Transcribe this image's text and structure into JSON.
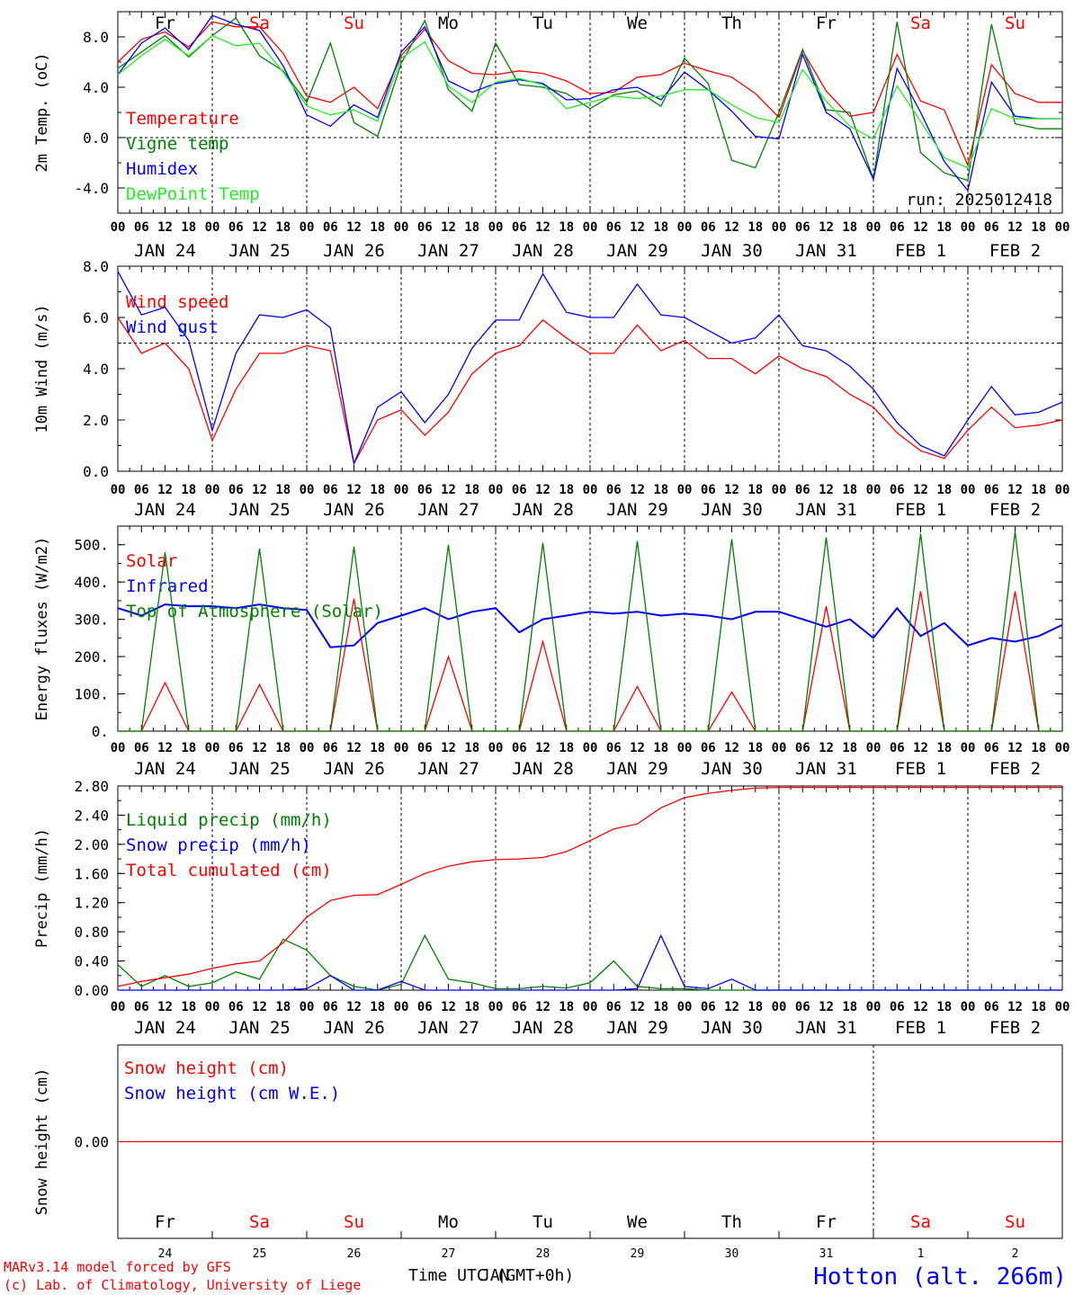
{
  "meteogram": {
    "run_label": "run: 2025012418",
    "footer_model": "MARv3.14 model forced by GFS",
    "footer_lab": "(c) Lab. of Climatology, University of Liege",
    "footer_time_label": "Time UTC (GMT+0h)",
    "footer_time_overlap": "JAN",
    "station": "Hotton (alt. 266m)",
    "hour_ticks": [
      "00",
      "06",
      "12",
      "18"
    ],
    "date_labels": [
      "JAN 24",
      "JAN 25",
      "JAN 26",
      "JAN 27",
      "JAN 28",
      "JAN 29",
      "JAN 30",
      "JAN 31",
      "FEB  1",
      "FEB  2"
    ],
    "day_labels": [
      "Fr",
      "Sa",
      "Su",
      "Mo",
      "Tu",
      "We",
      "Th",
      "Fr",
      "Sa",
      "Su"
    ],
    "day_colors": [
      "#000000",
      "#ff0000",
      "#ff0000",
      "#000000",
      "#000000",
      "#000000",
      "#000000",
      "#000000",
      "#ff0000",
      "#ff0000"
    ],
    "day_numbers": [
      "24",
      "25",
      "26",
      "27",
      "28",
      "29",
      "30",
      "31",
      "1",
      "2"
    ],
    "colors": {
      "red": "#ff0000",
      "green": "#008000",
      "blue": "#0000ff",
      "lightgreen": "#22ee22"
    }
  },
  "chart_data": [
    {
      "type": "line",
      "ylabel": "2m Temp. (oC)",
      "ylim": [
        -6,
        10
      ],
      "yticks": [
        -4,
        0,
        4,
        8
      ],
      "ytick_labels": [
        "-4.0",
        "0.0",
        "4.0",
        "8.0"
      ],
      "hline": 0,
      "x_start": "2025-01-24T00",
      "x_step_hours": 6,
      "series": [
        {
          "name": "Temperature",
          "color": "#ff0000",
          "values": [
            6.0,
            7.8,
            8.4,
            7.2,
            9.2,
            8.8,
            8.8,
            6.7,
            3.3,
            2.8,
            4.0,
            2.3,
            6.5,
            8.6,
            6.1,
            5.1,
            5.0,
            5.3,
            5.1,
            4.5,
            3.5,
            3.6,
            4.8,
            5.0,
            5.9,
            5.3,
            4.8,
            3.5,
            1.6,
            6.9,
            3.7,
            1.7,
            2.0,
            6.6,
            2.9,
            2.2,
            -2.2,
            5.8,
            3.5,
            2.8,
            2.8
          ]
        },
        {
          "name": "Vigne temp",
          "color": "#008000",
          "values": [
            5.5,
            6.8,
            8.1,
            6.4,
            8.1,
            9.5,
            6.5,
            5.3,
            2.8,
            7.5,
            1.2,
            0.1,
            5.9,
            9.3,
            3.8,
            2.1,
            7.5,
            4.2,
            4.0,
            3.5,
            2.3,
            3.4,
            3.7,
            2.5,
            6.3,
            4.3,
            -1.8,
            -2.4,
            2.0,
            7.0,
            2.2,
            2.0,
            -3.3,
            9.2,
            -1.2,
            -2.8,
            -3.4,
            9.0,
            1.1,
            0.7,
            0.7
          ]
        },
        {
          "name": "Humidex",
          "color": "#0000ff",
          "values": [
            5.0,
            7.5,
            8.7,
            7.0,
            9.7,
            9.0,
            8.5,
            5.7,
            1.8,
            0.9,
            2.6,
            1.6,
            6.8,
            8.8,
            4.5,
            3.6,
            4.3,
            4.6,
            4.3,
            3.0,
            3.1,
            3.8,
            4.0,
            3.0,
            5.2,
            3.8,
            2.1,
            0.1,
            -0.1,
            6.6,
            2.0,
            0.7,
            -3.3,
            5.5,
            2.0,
            -1.9,
            -4.2,
            4.4,
            1.7,
            1.5,
            1.5
          ]
        },
        {
          "name": "DewPoint Temp",
          "color": "#22ee22",
          "values": [
            5.0,
            6.5,
            7.8,
            6.5,
            8.1,
            7.3,
            7.5,
            5.2,
            2.5,
            1.8,
            2.2,
            1.3,
            6.3,
            7.6,
            4.1,
            2.8,
            4.4,
            4.7,
            4.2,
            2.3,
            2.8,
            3.3,
            3.1,
            3.3,
            3.8,
            3.8,
            2.6,
            1.6,
            1.2,
            5.4,
            2.9,
            0.9,
            -0.1,
            4.1,
            1.3,
            -1.6,
            -2.4,
            2.3,
            1.5,
            1.5,
            1.5
          ]
        }
      ]
    },
    {
      "type": "line",
      "ylabel": "10m Wind (m/s)",
      "ylim": [
        0,
        8
      ],
      "yticks": [
        0,
        2,
        4,
        6,
        8
      ],
      "ytick_labels": [
        "0.0",
        "2.0",
        "4.0",
        "6.0",
        "8.0"
      ],
      "hline": 5,
      "x_start": "2025-01-24T00",
      "x_step_hours": 6,
      "series": [
        {
          "name": "Wind speed",
          "color": "#ff0000",
          "values": [
            6.0,
            4.6,
            5.0,
            4.0,
            1.2,
            3.2,
            4.6,
            4.6,
            4.9,
            4.7,
            0.3,
            2.0,
            2.4,
            1.4,
            2.3,
            3.8,
            4.6,
            4.9,
            5.9,
            5.2,
            4.6,
            4.6,
            5.7,
            4.7,
            5.1,
            4.4,
            4.4,
            3.8,
            4.5,
            4.0,
            3.7,
            3.0,
            2.5,
            1.5,
            0.8,
            0.5,
            1.6,
            2.5,
            1.7,
            1.8,
            2.0
          ]
        },
        {
          "name": "Wind gust",
          "color": "#0000ff",
          "values": [
            7.8,
            6.1,
            6.4,
            5.1,
            1.6,
            4.6,
            6.1,
            6.0,
            6.3,
            5.6,
            0.3,
            2.5,
            3.1,
            1.9,
            3.0,
            4.8,
            5.9,
            5.9,
            7.7,
            6.2,
            6.0,
            6.0,
            7.3,
            6.1,
            6.0,
            5.5,
            5.0,
            5.2,
            6.1,
            4.9,
            4.7,
            4.1,
            3.2,
            1.9,
            1.0,
            0.6,
            2.0,
            3.3,
            2.2,
            2.3,
            2.7
          ]
        }
      ]
    },
    {
      "type": "line",
      "ylabel": "Energy fluxes (W/m2)",
      "ylim": [
        0,
        550
      ],
      "yticks": [
        0,
        100,
        200,
        300,
        400,
        500
      ],
      "ytick_labels": [
        "0.",
        "100.",
        "200.",
        "300.",
        "400.",
        "500."
      ],
      "x_start": "2025-01-24T00",
      "x_step_hours": 6,
      "series": [
        {
          "name": "Solar",
          "color": "#ff0000",
          "values": [
            0,
            0,
            130,
            0,
            0,
            0,
            125,
            0,
            0,
            0,
            355,
            0,
            0,
            0,
            200,
            0,
            0,
            0,
            240,
            0,
            0,
            0,
            120,
            0,
            0,
            0,
            105,
            0,
            0,
            0,
            335,
            0,
            0,
            0,
            375,
            0,
            0,
            0,
            375,
            0,
            0
          ]
        },
        {
          "name": "Infrared",
          "color": "#0000ff",
          "values": [
            330,
            310,
            340,
            335,
            335,
            330,
            340,
            330,
            325,
            225,
            230,
            290,
            310,
            330,
            300,
            320,
            330,
            265,
            300,
            310,
            320,
            315,
            320,
            310,
            315,
            310,
            300,
            320,
            320,
            300,
            280,
            300,
            250,
            330,
            255,
            290,
            230,
            250,
            240,
            255,
            285
          ]
        },
        {
          "name": "Top of Atmosphere (Solar)",
          "color": "#008000",
          "values": [
            0,
            0,
            480,
            0,
            0,
            0,
            490,
            0,
            0,
            0,
            495,
            0,
            0,
            0,
            500,
            0,
            0,
            0,
            505,
            0,
            0,
            0,
            510,
            0,
            0,
            0,
            515,
            0,
            0,
            0,
            520,
            0,
            0,
            0,
            530,
            0,
            0,
            0,
            535,
            0,
            0
          ]
        }
      ]
    },
    {
      "type": "line",
      "ylabel": "Precip (mm/h)",
      "ylim": [
        0,
        2.8
      ],
      "yticks": [
        0,
        0.4,
        0.8,
        1.2,
        1.6,
        2.0,
        2.4,
        2.8
      ],
      "ytick_labels": [
        "0.00",
        "0.40",
        "0.80",
        "1.20",
        "1.60",
        "2.00",
        "2.40",
        "2.80"
      ],
      "x_start": "2025-01-24T00",
      "x_step_hours": 6,
      "series": [
        {
          "name": "Liquid precip (mm/h)",
          "color": "#008000",
          "values": [
            0.35,
            0.05,
            0.2,
            0.05,
            0.1,
            0.25,
            0.15,
            0.7,
            0.55,
            0.2,
            0.05,
            0.0,
            0.08,
            0.75,
            0.15,
            0.1,
            0.02,
            0.02,
            0.05,
            0.03,
            0.1,
            0.4,
            0.05,
            0.02,
            0.02,
            0.0,
            0.0,
            0.0,
            0.0,
            0.0,
            0.0,
            0.0,
            0.0,
            0.0,
            0.0,
            0.0,
            0.0,
            0.0,
            0.0,
            0.0,
            0.0
          ]
        },
        {
          "name": "Snow precip (mm/h)",
          "color": "#0000ff",
          "values": [
            0.0,
            0.0,
            0.0,
            0.0,
            0.0,
            0.0,
            0.0,
            0.0,
            0.02,
            0.2,
            0.0,
            0.0,
            0.12,
            0.0,
            0.0,
            0.0,
            0.0,
            0.0,
            0.0,
            0.0,
            0.0,
            0.0,
            0.02,
            0.75,
            0.05,
            0.02,
            0.15,
            0.0,
            0.0,
            0.0,
            0.0,
            0.0,
            0.0,
            0.0,
            0.0,
            0.0,
            0.0,
            0.0,
            0.0,
            0.0,
            0.0
          ]
        },
        {
          "name": "Total cumulated (cm)",
          "color": "#ff0000",
          "values": [
            0.05,
            0.12,
            0.17,
            0.22,
            0.3,
            0.36,
            0.4,
            0.65,
            1.0,
            1.23,
            1.3,
            1.31,
            1.45,
            1.6,
            1.7,
            1.76,
            1.79,
            1.8,
            1.82,
            1.9,
            2.05,
            2.21,
            2.28,
            2.5,
            2.64,
            2.7,
            2.74,
            2.77,
            2.78,
            2.78,
            2.78,
            2.78,
            2.78,
            2.78,
            2.78,
            2.78,
            2.78,
            2.78,
            2.78,
            2.78,
            2.78
          ]
        }
      ]
    },
    {
      "type": "line",
      "ylabel": "Snow height (cm)",
      "ylim": [
        -1,
        1
      ],
      "yticks": [
        0
      ],
      "ytick_labels": [
        "0.00"
      ],
      "x_start": "2025-01-24T00",
      "x_step_hours": 6,
      "series": [
        {
          "name": "Snow height (cm)",
          "color": "#ff0000",
          "values": [
            0,
            0,
            0,
            0,
            0,
            0,
            0,
            0,
            0,
            0,
            0,
            0,
            0,
            0,
            0,
            0,
            0,
            0,
            0,
            0,
            0,
            0,
            0,
            0,
            0,
            0,
            0,
            0,
            0,
            0,
            0,
            0,
            0,
            0,
            0,
            0,
            0,
            0,
            0,
            0,
            0
          ]
        },
        {
          "name": "Snow height (cm W.E.)",
          "color": "#0000ff",
          "values": []
        }
      ]
    }
  ]
}
